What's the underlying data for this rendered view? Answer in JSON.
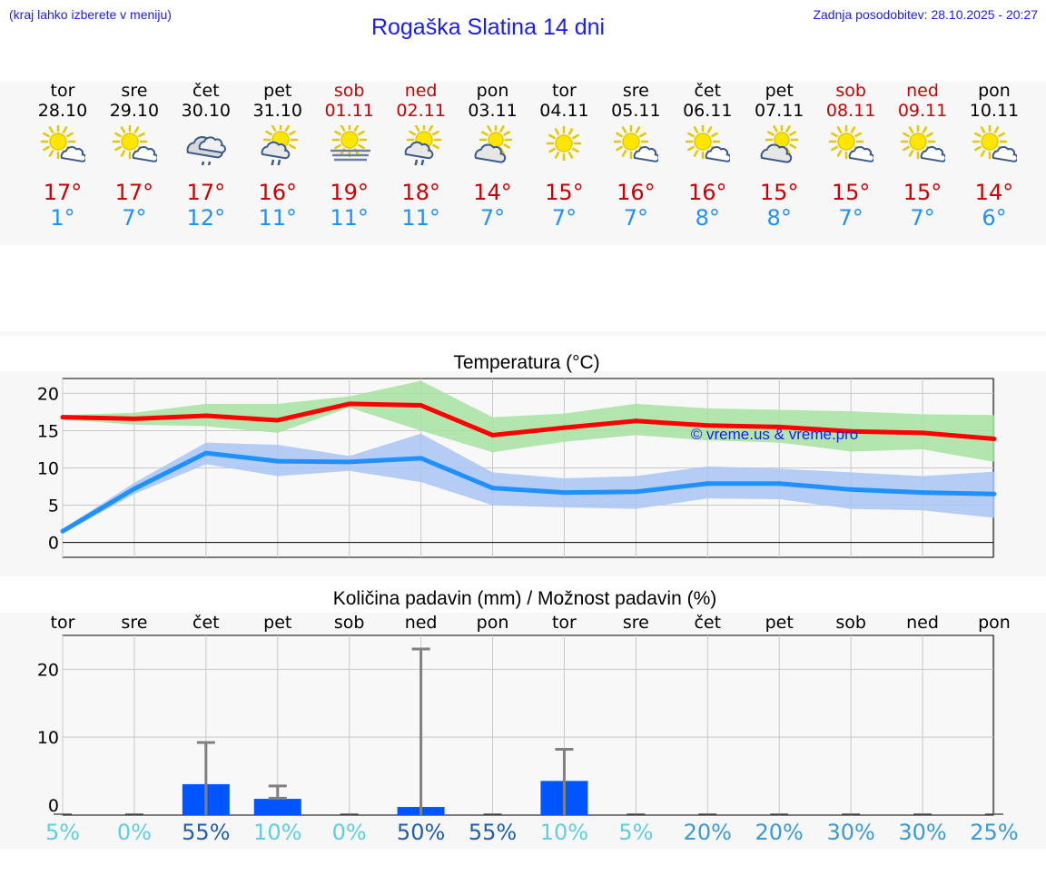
{
  "header": {
    "note_left": "(kraj lahko izberete v meniju)",
    "title": "Rogaška Slatina 14 dni",
    "updated": "Zadnja posodobitev: 28.10.2025 - 20:27"
  },
  "days": [
    {
      "name": "tor",
      "date": "28.10",
      "weekend": false,
      "icon": "partly-cloudy-icon",
      "max": "17°",
      "min": "1°"
    },
    {
      "name": "sre",
      "date": "29.10",
      "weekend": false,
      "icon": "partly-cloudy-icon",
      "max": "17°",
      "min": "7°"
    },
    {
      "name": "čet",
      "date": "30.10",
      "weekend": false,
      "icon": "cloud-rain-icon",
      "max": "17°",
      "min": "12°"
    },
    {
      "name": "pet",
      "date": "31.10",
      "weekend": false,
      "icon": "sun-cloud-rain-icon",
      "max": "16°",
      "min": "11°"
    },
    {
      "name": "sob",
      "date": "01.11",
      "weekend": true,
      "icon": "sun-fog-icon",
      "max": "19°",
      "min": "11°"
    },
    {
      "name": "ned",
      "date": "02.11",
      "weekend": true,
      "icon": "sun-cloud-rain-icon",
      "max": "18°",
      "min": "11°"
    },
    {
      "name": "pon",
      "date": "03.11",
      "weekend": false,
      "icon": "cloud-sun-icon",
      "max": "14°",
      "min": "7°"
    },
    {
      "name": "tor",
      "date": "04.11",
      "weekend": false,
      "icon": "sun-icon",
      "max": "15°",
      "min": "7°"
    },
    {
      "name": "sre",
      "date": "05.11",
      "weekend": false,
      "icon": "partly-cloudy-icon",
      "max": "16°",
      "min": "7°"
    },
    {
      "name": "čet",
      "date": "06.11",
      "weekend": false,
      "icon": "partly-cloudy-icon",
      "max": "16°",
      "min": "8°"
    },
    {
      "name": "pet",
      "date": "07.11",
      "weekend": false,
      "icon": "cloud-sun-icon",
      "max": "15°",
      "min": "8°"
    },
    {
      "name": "sob",
      "date": "08.11",
      "weekend": true,
      "icon": "partly-cloudy-icon",
      "max": "15°",
      "min": "7°"
    },
    {
      "name": "ned",
      "date": "09.11",
      "weekend": true,
      "icon": "partly-cloudy-icon",
      "max": "15°",
      "min": "7°"
    },
    {
      "name": "pon",
      "date": "10.11",
      "weekend": false,
      "icon": "partly-cloudy-icon",
      "max": "14°",
      "min": "6°"
    }
  ],
  "colors": {
    "max_line": "#ff0000",
    "max_band": "#a6e3a1",
    "min_line": "#1e90ff",
    "min_band": "#a9c4f5",
    "bar": "#0055ff",
    "whisker": "#808080",
    "weekend": "#cc0000"
  },
  "chart_data": [
    {
      "type": "line",
      "title": "Temperatura (°C)",
      "watermark": "© vreme.us & vreme.pro",
      "x": [
        0,
        1,
        2,
        3,
        4,
        5,
        6,
        7,
        8,
        9,
        10,
        11,
        12,
        13
      ],
      "ylim": [
        -2,
        22
      ],
      "yticks": [
        0,
        5,
        10,
        15,
        20
      ],
      "series": [
        {
          "name": "max",
          "values": [
            16.8,
            16.6,
            17.0,
            16.4,
            18.6,
            18.4,
            14.4,
            15.4,
            16.3,
            15.7,
            15.5,
            14.9,
            14.7,
            13.9
          ],
          "band_low": [
            16.5,
            15.8,
            15.6,
            14.7,
            18.1,
            15.0,
            12.1,
            13.5,
            14.4,
            13.7,
            13.4,
            12.2,
            12.5,
            10.8
          ],
          "band_high": [
            17.1,
            17.4,
            18.6,
            18.6,
            19.6,
            21.7,
            16.8,
            17.3,
            18.6,
            18.0,
            17.8,
            17.6,
            17.2,
            17.1
          ]
        },
        {
          "name": "min",
          "values": [
            1.5,
            7.2,
            12.0,
            10.9,
            10.8,
            11.3,
            7.3,
            6.7,
            6.8,
            7.9,
            7.9,
            7.1,
            6.7,
            6.5
          ],
          "band_low": [
            1.2,
            6.5,
            10.5,
            8.9,
            9.6,
            8.1,
            5.0,
            4.7,
            4.5,
            5.9,
            5.8,
            4.5,
            4.3,
            3.3
          ],
          "band_high": [
            1.8,
            8.0,
            13.4,
            13.1,
            11.6,
            14.6,
            9.4,
            8.6,
            8.9,
            10.2,
            9.9,
            9.4,
            8.9,
            9.5
          ]
        }
      ]
    },
    {
      "type": "bar",
      "title": "Količina padavin (mm) / Možnost padavin (%)",
      "categories": [
        "tor",
        "sre",
        "čet",
        "pet",
        "sob",
        "ned",
        "pon",
        "tor",
        "sre",
        "čet",
        "pet",
        "sob",
        "ned",
        "pon"
      ],
      "ylim": [
        -1.5,
        25
      ],
      "yticks": [
        0,
        10,
        20
      ],
      "values": [
        0,
        0,
        3.8,
        2.0,
        0,
        1.0,
        0,
        4.2,
        0,
        0,
        0,
        0,
        0,
        0
      ],
      "err_low": [
        0,
        0,
        0,
        1,
        0,
        0,
        0,
        0,
        0,
        0,
        0,
        0,
        0,
        0
      ],
      "err_high": [
        0,
        0,
        9.2,
        2.8,
        0,
        23,
        0,
        8.2,
        0,
        0,
        0,
        0,
        0,
        0
      ],
      "probability": [
        "5%",
        "0%",
        "55%",
        "10%",
        "0%",
        "50%",
        "55%",
        "10%",
        "5%",
        "20%",
        "20%",
        "30%",
        "30%",
        "25%"
      ]
    }
  ]
}
